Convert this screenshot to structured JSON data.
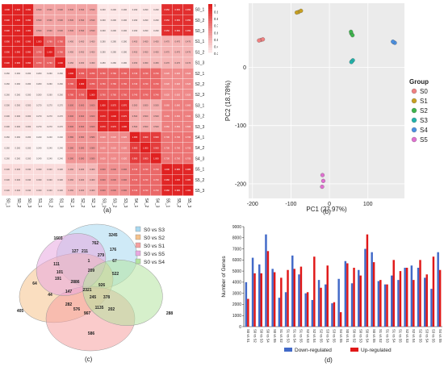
{
  "panel_labels": {
    "a": "(a)",
    "b": "(b)",
    "c": "(c)",
    "d": "(d)"
  },
  "chart_data": [
    {
      "type": "heatmap",
      "panel": "(a)",
      "samples": [
        "S0_1",
        "S0_2",
        "S0_3",
        "S1_1",
        "S1_2",
        "S1_3",
        "S2_1",
        "S2_2",
        "S2_3",
        "S3_1",
        "S3_2",
        "S3_3",
        "S4_1",
        "S4_2",
        "S4_3",
        "S5_1",
        "S5_2",
        "S5_3"
      ],
      "colorbar_ticks": [
        "1",
        "0.9",
        "0.8",
        "0.7",
        "0.6",
        "0.5",
        "0.4",
        "0.3"
      ],
      "colors": {
        "low": "#ffffff",
        "high": "#e02020"
      },
      "group_values": [
        [
          0.99,
          0.53,
          0.53,
          0.29,
          0.29,
          0.95,
          0.3
        ],
        [
          0.99,
          0.76,
          0.45,
          0.28,
          0.45,
          0.47,
          0.47
        ],
        [
          0.26,
          0.26,
          0.78,
          0.76,
          0.74,
          0.62,
          0.47
        ],
        [
          0.3,
          0.27,
          0.6,
          0.97,
          0.5,
          0.66,
          0.66
        ],
        [
          0.26,
          0.24,
          0.58,
          0.62,
          0.9,
          0.7,
          0.7
        ],
        [
          0.33,
          0.33,
          0.46,
          0.6,
          0.74,
          0.98,
          0.98
        ]
      ]
    },
    {
      "type": "scatter",
      "panel": "(b)",
      "xlabel": "PC1 (27.97%)",
      "ylabel": "PC2 (18.78%)",
      "xlim": [
        -210,
        195
      ],
      "ylim": [
        -225,
        110
      ],
      "xticks": [
        -200,
        -100,
        0,
        100
      ],
      "yticks": [
        -200,
        -100,
        0
      ],
      "legend_title": "Group",
      "series": [
        {
          "name": "S0",
          "color": "#f08080",
          "points": [
            [
              -178,
              47
            ],
            [
              -183,
              46
            ],
            [
              -173,
              48
            ]
          ]
        },
        {
          "name": "S1",
          "color": "#c8a020",
          "points": [
            [
              -80,
              95
            ],
            [
              -74,
              97
            ],
            [
              -85,
              94
            ]
          ]
        },
        {
          "name": "S2",
          "color": "#3cb44b",
          "points": [
            [
              57,
              58
            ],
            [
              60,
              55
            ],
            [
              56,
              61
            ]
          ]
        },
        {
          "name": "S3",
          "color": "#20b2aa",
          "points": [
            [
              58,
              10
            ],
            [
              61,
              12
            ],
            [
              57,
              9
            ]
          ]
        },
        {
          "name": "S4",
          "color": "#4a90e2",
          "points": [
            [
              167,
              43
            ],
            [
              170,
              42
            ],
            [
              165,
              44
            ]
          ]
        },
        {
          "name": "S5",
          "color": "#e070d0",
          "points": [
            [
              -18,
              -185
            ],
            [
              -16,
              -195
            ],
            [
              -19,
              -205
            ]
          ]
        }
      ]
    },
    {
      "type": "venn",
      "panel": "(c)",
      "sets": [
        {
          "name": "S0 vs S3",
          "color": "#a8d8f0"
        },
        {
          "name": "S0 vs S2",
          "color": "#f5c28c"
        },
        {
          "name": "S0 vs S1",
          "color": "#f5a0a0"
        },
        {
          "name": "S0 vs S5",
          "color": "#e8a8e0"
        },
        {
          "name": "S0 vs S4",
          "color": "#b4e4a0"
        }
      ],
      "region_counts": [
        "1603",
        "3245",
        "762",
        "405",
        "288",
        "111",
        "127",
        "211",
        "279",
        "176",
        "522",
        "67",
        "101",
        "1",
        "209",
        "64",
        "191",
        "2886",
        "926",
        "44",
        "147",
        "2321",
        "378",
        "245",
        "282",
        "576",
        "967",
        "1135",
        "202",
        "586"
      ]
    },
    {
      "type": "bar",
      "panel": "(d)",
      "ylabel": "Number of Genes",
      "ylim": [
        0,
        9000
      ],
      "yticks": [
        0,
        1000,
        2000,
        3000,
        4000,
        5000,
        6000,
        7000,
        8000,
        9000
      ],
      "categories": [
        "S0 vs S1",
        "S0 vs S2",
        "S0 vs S3",
        "S0 vs S4",
        "S0 vs S5",
        "S1 vs S2",
        "S1 vs S3",
        "S1 vs S4",
        "S1 vs S5",
        "S2 vs S3",
        "S2 vs S4",
        "S2 vs S5",
        "S3 vs S4",
        "S3 vs S5",
        "S4 vs S5",
        "S0 vs S1",
        "S0 vs S2",
        "S0 vs S3",
        "S0 vs S4",
        "S0 vs S5",
        "S1 vs S2",
        "S1 vs S3",
        "S1 vs S4",
        "S1 vs S5",
        "S2 vs S3",
        "S2 vs S4",
        "S2 vs S5",
        "S3 vs S4",
        "S3 vs S5",
        "S4 vs S5"
      ],
      "series": [
        {
          "name": "Down-regulated",
          "color": "#4169c8",
          "values": [
            4000,
            6200,
            5600,
            8300,
            5200,
            2600,
            3100,
            6400,
            4700,
            3000,
            2400,
            4200,
            3800,
            2100,
            4300,
            5900,
            3900,
            5100,
            7000,
            6700,
            4100,
            3800,
            4600,
            4200,
            5300,
            5500,
            5300,
            4400,
            3400,
            6700
          ]
        },
        {
          "name": "Up-regulated",
          "color": "#e01818",
          "values": [
            2500,
            4800,
            4800,
            6800,
            4900,
            4400,
            5100,
            5200,
            5400,
            3100,
            6300,
            3500,
            5500,
            2200,
            1300,
            5700,
            5300,
            4600,
            8300,
            5800,
            4200,
            3800,
            6000,
            5000,
            5300,
            4200,
            6000,
            4700,
            6300,
            5100
          ]
        }
      ]
    }
  ]
}
